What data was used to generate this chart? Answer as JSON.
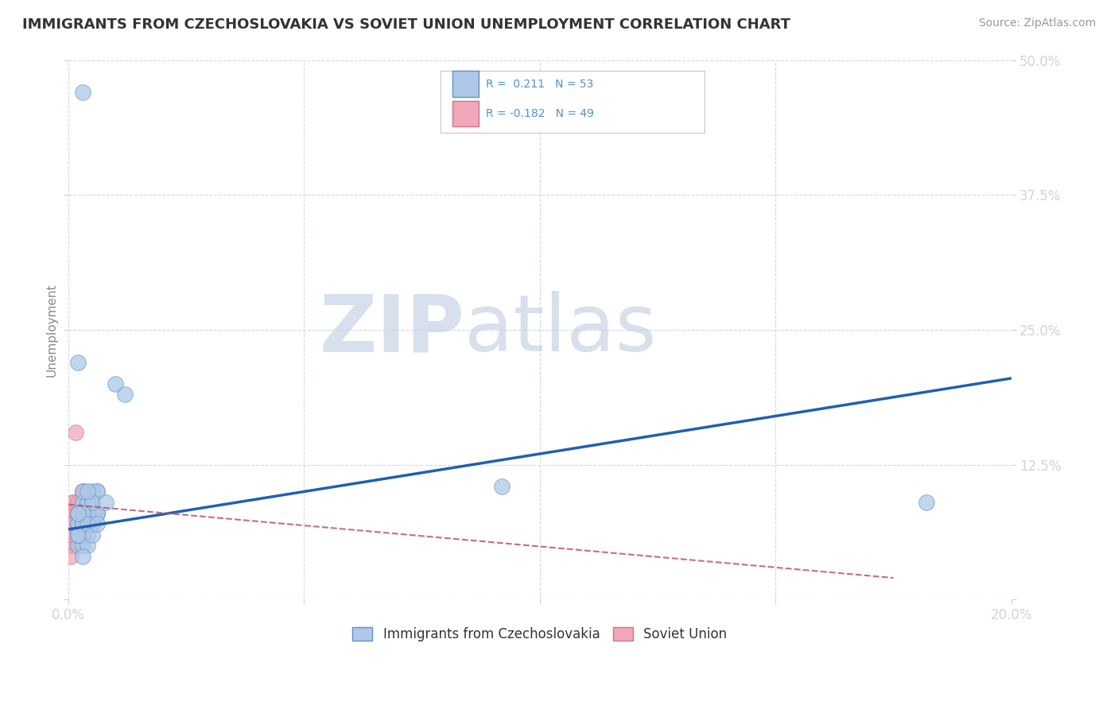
{
  "title": "IMMIGRANTS FROM CZECHOSLOVAKIA VS SOVIET UNION UNEMPLOYMENT CORRELATION CHART",
  "source": "Source: ZipAtlas.com",
  "ylabel": "Unemployment",
  "xlim": [
    0.0,
    0.2
  ],
  "ylim": [
    0.0,
    0.5
  ],
  "blue_color": "#adc8e8",
  "blue_edge_color": "#6090c8",
  "pink_color": "#f0a8b8",
  "pink_edge_color": "#d07090",
  "blue_line_color": "#2060b0",
  "pink_line_color": "#c05070",
  "tick_label_color": "#5090d0",
  "grid_color": "#d0d8e8",
  "watermark1": "ZIP",
  "watermark2": "atlas",
  "background_color": "#ffffff",
  "blue_line_x": [
    0.0,
    0.2
  ],
  "blue_line_y": [
    0.065,
    0.205
  ],
  "pink_line_x": [
    0.0,
    0.175
  ],
  "pink_line_y": [
    0.088,
    0.02
  ],
  "blue_scatter_x": [
    0.003,
    0.004,
    0.002,
    0.006,
    0.003,
    0.005,
    0.002,
    0.004,
    0.003,
    0.002,
    0.005,
    0.004,
    0.006,
    0.003,
    0.002,
    0.004,
    0.003,
    0.005,
    0.002,
    0.003,
    0.004,
    0.006,
    0.003,
    0.002,
    0.005,
    0.004,
    0.003,
    0.006,
    0.002,
    0.004,
    0.003,
    0.005,
    0.004,
    0.002,
    0.006,
    0.003,
    0.004,
    0.005,
    0.003,
    0.002,
    0.004,
    0.003,
    0.005,
    0.002,
    0.006,
    0.003,
    0.004,
    0.008,
    0.01,
    0.012,
    0.092,
    0.182,
    0.003
  ],
  "blue_scatter_y": [
    0.07,
    0.09,
    0.22,
    0.1,
    0.08,
    0.07,
    0.06,
    0.09,
    0.07,
    0.08,
    0.1,
    0.06,
    0.08,
    0.09,
    0.05,
    0.07,
    0.06,
    0.08,
    0.07,
    0.09,
    0.07,
    0.08,
    0.06,
    0.07,
    0.09,
    0.08,
    0.07,
    0.1,
    0.06,
    0.08,
    0.05,
    0.07,
    0.09,
    0.06,
    0.08,
    0.07,
    0.05,
    0.09,
    0.08,
    0.06,
    0.07,
    0.1,
    0.06,
    0.08,
    0.07,
    0.04,
    0.1,
    0.09,
    0.2,
    0.19,
    0.105,
    0.09,
    0.47
  ],
  "pink_scatter_x": [
    0.0015,
    0.002,
    0.001,
    0.003,
    0.002,
    0.001,
    0.002,
    0.001,
    0.003,
    0.002,
    0.001,
    0.002,
    0.001,
    0.003,
    0.001,
    0.002,
    0.001,
    0.002,
    0.003,
    0.001,
    0.002,
    0.001,
    0.002,
    0.001,
    0.003,
    0.002,
    0.001,
    0.002,
    0.001,
    0.003,
    0.002,
    0.001,
    0.002,
    0.001,
    0.003,
    0.001,
    0.002,
    0.001,
    0.002,
    0.003,
    0.001,
    0.002,
    0.001,
    0.003,
    0.002,
    0.001,
    0.002,
    0.001,
    0.0005
  ],
  "pink_scatter_y": [
    0.155,
    0.09,
    0.07,
    0.1,
    0.08,
    0.07,
    0.09,
    0.06,
    0.08,
    0.07,
    0.08,
    0.09,
    0.06,
    0.1,
    0.07,
    0.08,
    0.05,
    0.07,
    0.09,
    0.08,
    0.06,
    0.07,
    0.08,
    0.09,
    0.07,
    0.06,
    0.08,
    0.09,
    0.05,
    0.07,
    0.06,
    0.08,
    0.07,
    0.09,
    0.08,
    0.05,
    0.06,
    0.07,
    0.08,
    0.06,
    0.07,
    0.09,
    0.05,
    0.08,
    0.06,
    0.07,
    0.08,
    0.06,
    0.04
  ]
}
